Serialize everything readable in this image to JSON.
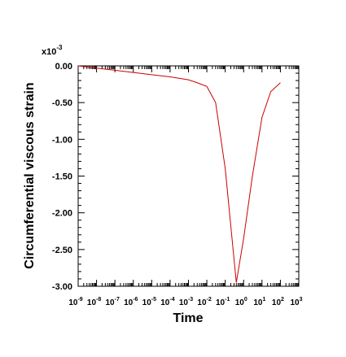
{
  "chart_data": {
    "type": "line",
    "title": "",
    "xlabel": "Time",
    "ylabel": "Circumferential viscous strain",
    "y_multiplier_base": "x10",
    "y_multiplier_exp": "-3",
    "x_scale": "log",
    "xlim": [
      1e-09,
      1000
    ],
    "ylim": [
      -3.0,
      0.0
    ],
    "grid": false,
    "y_ticks": [
      0.0,
      -0.5,
      -1.0,
      -1.5,
      -2.0,
      -2.5,
      -3.0
    ],
    "y_tick_labels": [
      "0.00",
      "-0.50",
      "-1.00",
      "-1.50",
      "-2.00",
      "-2.50",
      "-3.00"
    ],
    "x_ticks": [
      1e-09,
      1e-08,
      1e-07,
      1e-06,
      1e-05,
      0.0001,
      0.001,
      0.01,
      0.1,
      1,
      10,
      100,
      1000
    ],
    "x_tick_exps": [
      "-9",
      "-8",
      "-7",
      "-6",
      "-5",
      "-4",
      "-3",
      "-2",
      "-1",
      "0",
      "1",
      "2",
      "3"
    ],
    "x_tick_base": "10",
    "line_color": "#cc0000",
    "series": [
      {
        "x": [
          1e-09,
          1e-08,
          1e-07,
          1e-06,
          1e-05,
          0.0001,
          0.001,
          0.003,
          0.01,
          0.03,
          0.1,
          0.4,
          1,
          3,
          10,
          30,
          100
        ],
        "y": [
          0.0,
          -0.03,
          -0.06,
          -0.09,
          -0.12,
          -0.15,
          -0.19,
          -0.23,
          -0.28,
          -0.5,
          -1.4,
          -2.95,
          -2.35,
          -1.5,
          -0.7,
          -0.35,
          -0.23
        ]
      }
    ]
  }
}
